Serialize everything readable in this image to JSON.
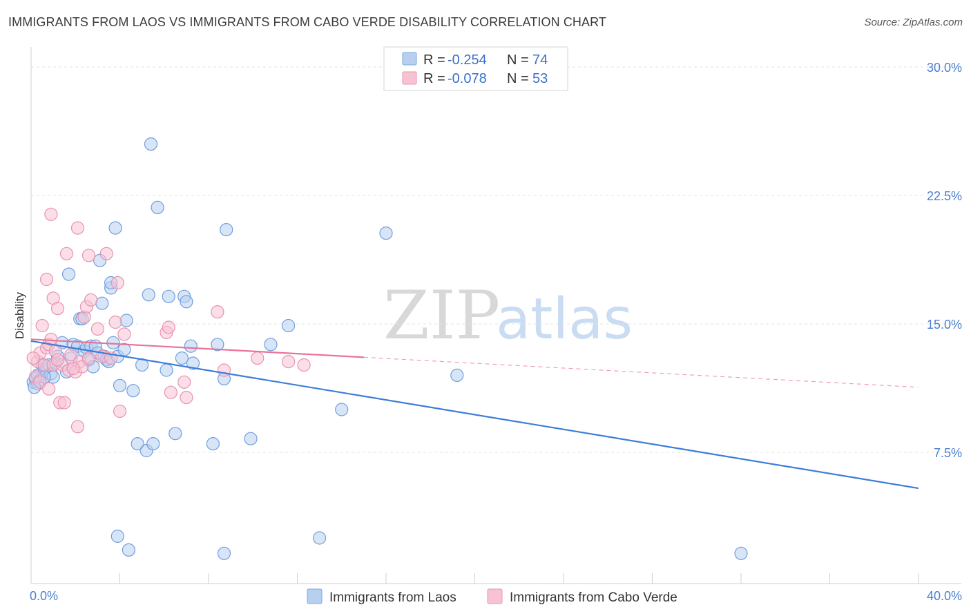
{
  "title": "IMMIGRANTS FROM LAOS VS IMMIGRANTS FROM CABO VERDE DISABILITY CORRELATION CHART",
  "source": "Source: ZipAtlas.com",
  "watermark": {
    "zip": "ZIP",
    "atlas": "atlas"
  },
  "colors": {
    "blue": "#3b7dd8",
    "blue_fill": "#b8d0f0",
    "pink": "#e8739b",
    "pink_fill": "#f7c3d3",
    "accent_text": "#3a70c8"
  },
  "legend": {
    "rows": [
      {
        "r_label": "R = ",
        "r_value": "-0.254",
        "n_label": "N = ",
        "n_value": "74"
      },
      {
        "r_label": "R = ",
        "r_value": "-0.078",
        "n_label": "N = ",
        "n_value": "53"
      }
    ]
  },
  "chart_data": {
    "type": "scatter",
    "title": "IMMIGRANTS FROM LAOS VS IMMIGRANTS FROM CABO VERDE DISABILITY CORRELATION CHART",
    "xlabel": "",
    "ylabel": "Disability",
    "xlim": [
      0,
      40
    ],
    "ylim": [
      0,
      31
    ],
    "x_tick_labels": [
      "0.0%",
      "40.0%"
    ],
    "y_ticks": [
      7.5,
      15.0,
      22.5,
      30.0
    ],
    "y_tick_labels": [
      "7.5%",
      "15.0%",
      "22.5%",
      "30.0%"
    ],
    "grid": true,
    "series": [
      {
        "name": "Immigrants from Laos",
        "color": "#3b7dd8",
        "R": -0.254,
        "N": 74,
        "trend": {
          "x0": 0,
          "y0": 14.0,
          "x1": 40,
          "y1": 5.4,
          "dashed_from_x": null
        },
        "points": [
          [
            0.1,
            11.6
          ],
          [
            0.2,
            11.8
          ],
          [
            0.3,
            12.0
          ],
          [
            0.4,
            11.7
          ],
          [
            0.5,
            12.6
          ],
          [
            0.6,
            12.4
          ],
          [
            0.7,
            12.5
          ],
          [
            0.8,
            12.6
          ],
          [
            0.9,
            12.1
          ],
          [
            1.0,
            11.9
          ],
          [
            1.2,
            13.1
          ],
          [
            1.4,
            13.9
          ],
          [
            1.6,
            12.2
          ],
          [
            1.7,
            17.9
          ],
          [
            1.8,
            13.0
          ],
          [
            1.9,
            13.8
          ],
          [
            2.1,
            13.7
          ],
          [
            2.2,
            15.3
          ],
          [
            2.3,
            15.3
          ],
          [
            2.4,
            13.4
          ],
          [
            2.5,
            13.6
          ],
          [
            2.6,
            12.9
          ],
          [
            2.7,
            13.7
          ],
          [
            2.8,
            12.5
          ],
          [
            2.9,
            13.7
          ],
          [
            3.0,
            13.3
          ],
          [
            3.1,
            18.7
          ],
          [
            3.2,
            16.2
          ],
          [
            3.3,
            13.1
          ],
          [
            3.4,
            12.9
          ],
          [
            3.5,
            12.8
          ],
          [
            3.6,
            17.1
          ],
          [
            3.6,
            17.4
          ],
          [
            3.7,
            13.9
          ],
          [
            3.8,
            20.6
          ],
          [
            3.9,
            13.1
          ],
          [
            4.0,
            11.4
          ],
          [
            4.2,
            13.5
          ],
          [
            4.3,
            15.2
          ],
          [
            4.6,
            11.1
          ],
          [
            4.8,
            8.0
          ],
          [
            5.0,
            12.6
          ],
          [
            5.2,
            7.6
          ],
          [
            5.3,
            16.7
          ],
          [
            5.4,
            25.5
          ],
          [
            5.5,
            8.0
          ],
          [
            5.7,
            21.8
          ],
          [
            6.1,
            12.3
          ],
          [
            6.2,
            16.6
          ],
          [
            6.5,
            8.6
          ],
          [
            6.9,
            16.6
          ],
          [
            6.8,
            13.0
          ],
          [
            7.0,
            16.3
          ],
          [
            7.2,
            13.7
          ],
          [
            7.3,
            12.7
          ],
          [
            8.2,
            8.0
          ],
          [
            8.4,
            13.8
          ],
          [
            8.7,
            11.8
          ],
          [
            8.8,
            20.5
          ],
          [
            9.9,
            8.3
          ],
          [
            10.8,
            13.8
          ],
          [
            11.6,
            14.9
          ],
          [
            13.0,
            2.5
          ],
          [
            14.0,
            10.0
          ],
          [
            16.0,
            20.3
          ],
          [
            19.2,
            12.0
          ],
          [
            32.0,
            1.6
          ],
          [
            3.9,
            2.6
          ],
          [
            4.4,
            1.8
          ],
          [
            8.7,
            1.6
          ],
          [
            0.3,
            11.5
          ],
          [
            0.15,
            11.3
          ],
          [
            1.1,
            12.7
          ],
          [
            0.6,
            11.9
          ]
        ]
      },
      {
        "name": "Immigrants from Cabo Verde",
        "color": "#e8739b",
        "R": -0.078,
        "N": 53,
        "trend": {
          "x0": 0,
          "y0": 14.1,
          "x1": 40,
          "y1": 11.3,
          "dashed_from_x": 15.0
        },
        "points": [
          [
            0.2,
            11.9
          ],
          [
            0.3,
            12.8
          ],
          [
            0.4,
            13.3
          ],
          [
            0.5,
            14.9
          ],
          [
            0.6,
            12.6
          ],
          [
            0.7,
            13.6
          ],
          [
            0.8,
            13.8
          ],
          [
            0.9,
            14.1
          ],
          [
            1.0,
            12.6
          ],
          [
            1.0,
            16.5
          ],
          [
            1.1,
            13.4
          ],
          [
            1.2,
            15.9
          ],
          [
            1.3,
            10.4
          ],
          [
            1.4,
            12.6
          ],
          [
            1.5,
            10.4
          ],
          [
            1.6,
            19.1
          ],
          [
            1.7,
            12.3
          ],
          [
            1.8,
            13.2
          ],
          [
            2.0,
            12.2
          ],
          [
            2.1,
            20.6
          ],
          [
            2.1,
            9.0
          ],
          [
            2.2,
            12.8
          ],
          [
            2.3,
            12.5
          ],
          [
            2.4,
            15.4
          ],
          [
            2.5,
            16.0
          ],
          [
            2.6,
            19.0
          ],
          [
            2.7,
            16.4
          ],
          [
            3.0,
            14.7
          ],
          [
            3.2,
            13.1
          ],
          [
            3.4,
            19.1
          ],
          [
            3.6,
            13.0
          ],
          [
            3.8,
            15.1
          ],
          [
            3.9,
            17.4
          ],
          [
            4.0,
            9.9
          ],
          [
            4.2,
            14.4
          ],
          [
            0.9,
            21.4
          ],
          [
            0.7,
            17.6
          ],
          [
            6.1,
            14.5
          ],
          [
            6.2,
            14.8
          ],
          [
            6.3,
            11.0
          ],
          [
            6.9,
            11.6
          ],
          [
            7.0,
            10.7
          ],
          [
            8.4,
            15.7
          ],
          [
            8.7,
            12.3
          ],
          [
            10.2,
            13.0
          ],
          [
            11.6,
            12.8
          ],
          [
            12.3,
            12.6
          ],
          [
            0.1,
            13.0
          ],
          [
            0.4,
            11.6
          ],
          [
            1.2,
            12.9
          ],
          [
            2.6,
            13.0
          ],
          [
            0.8,
            11.2
          ],
          [
            1.9,
            12.4
          ]
        ]
      }
    ]
  }
}
